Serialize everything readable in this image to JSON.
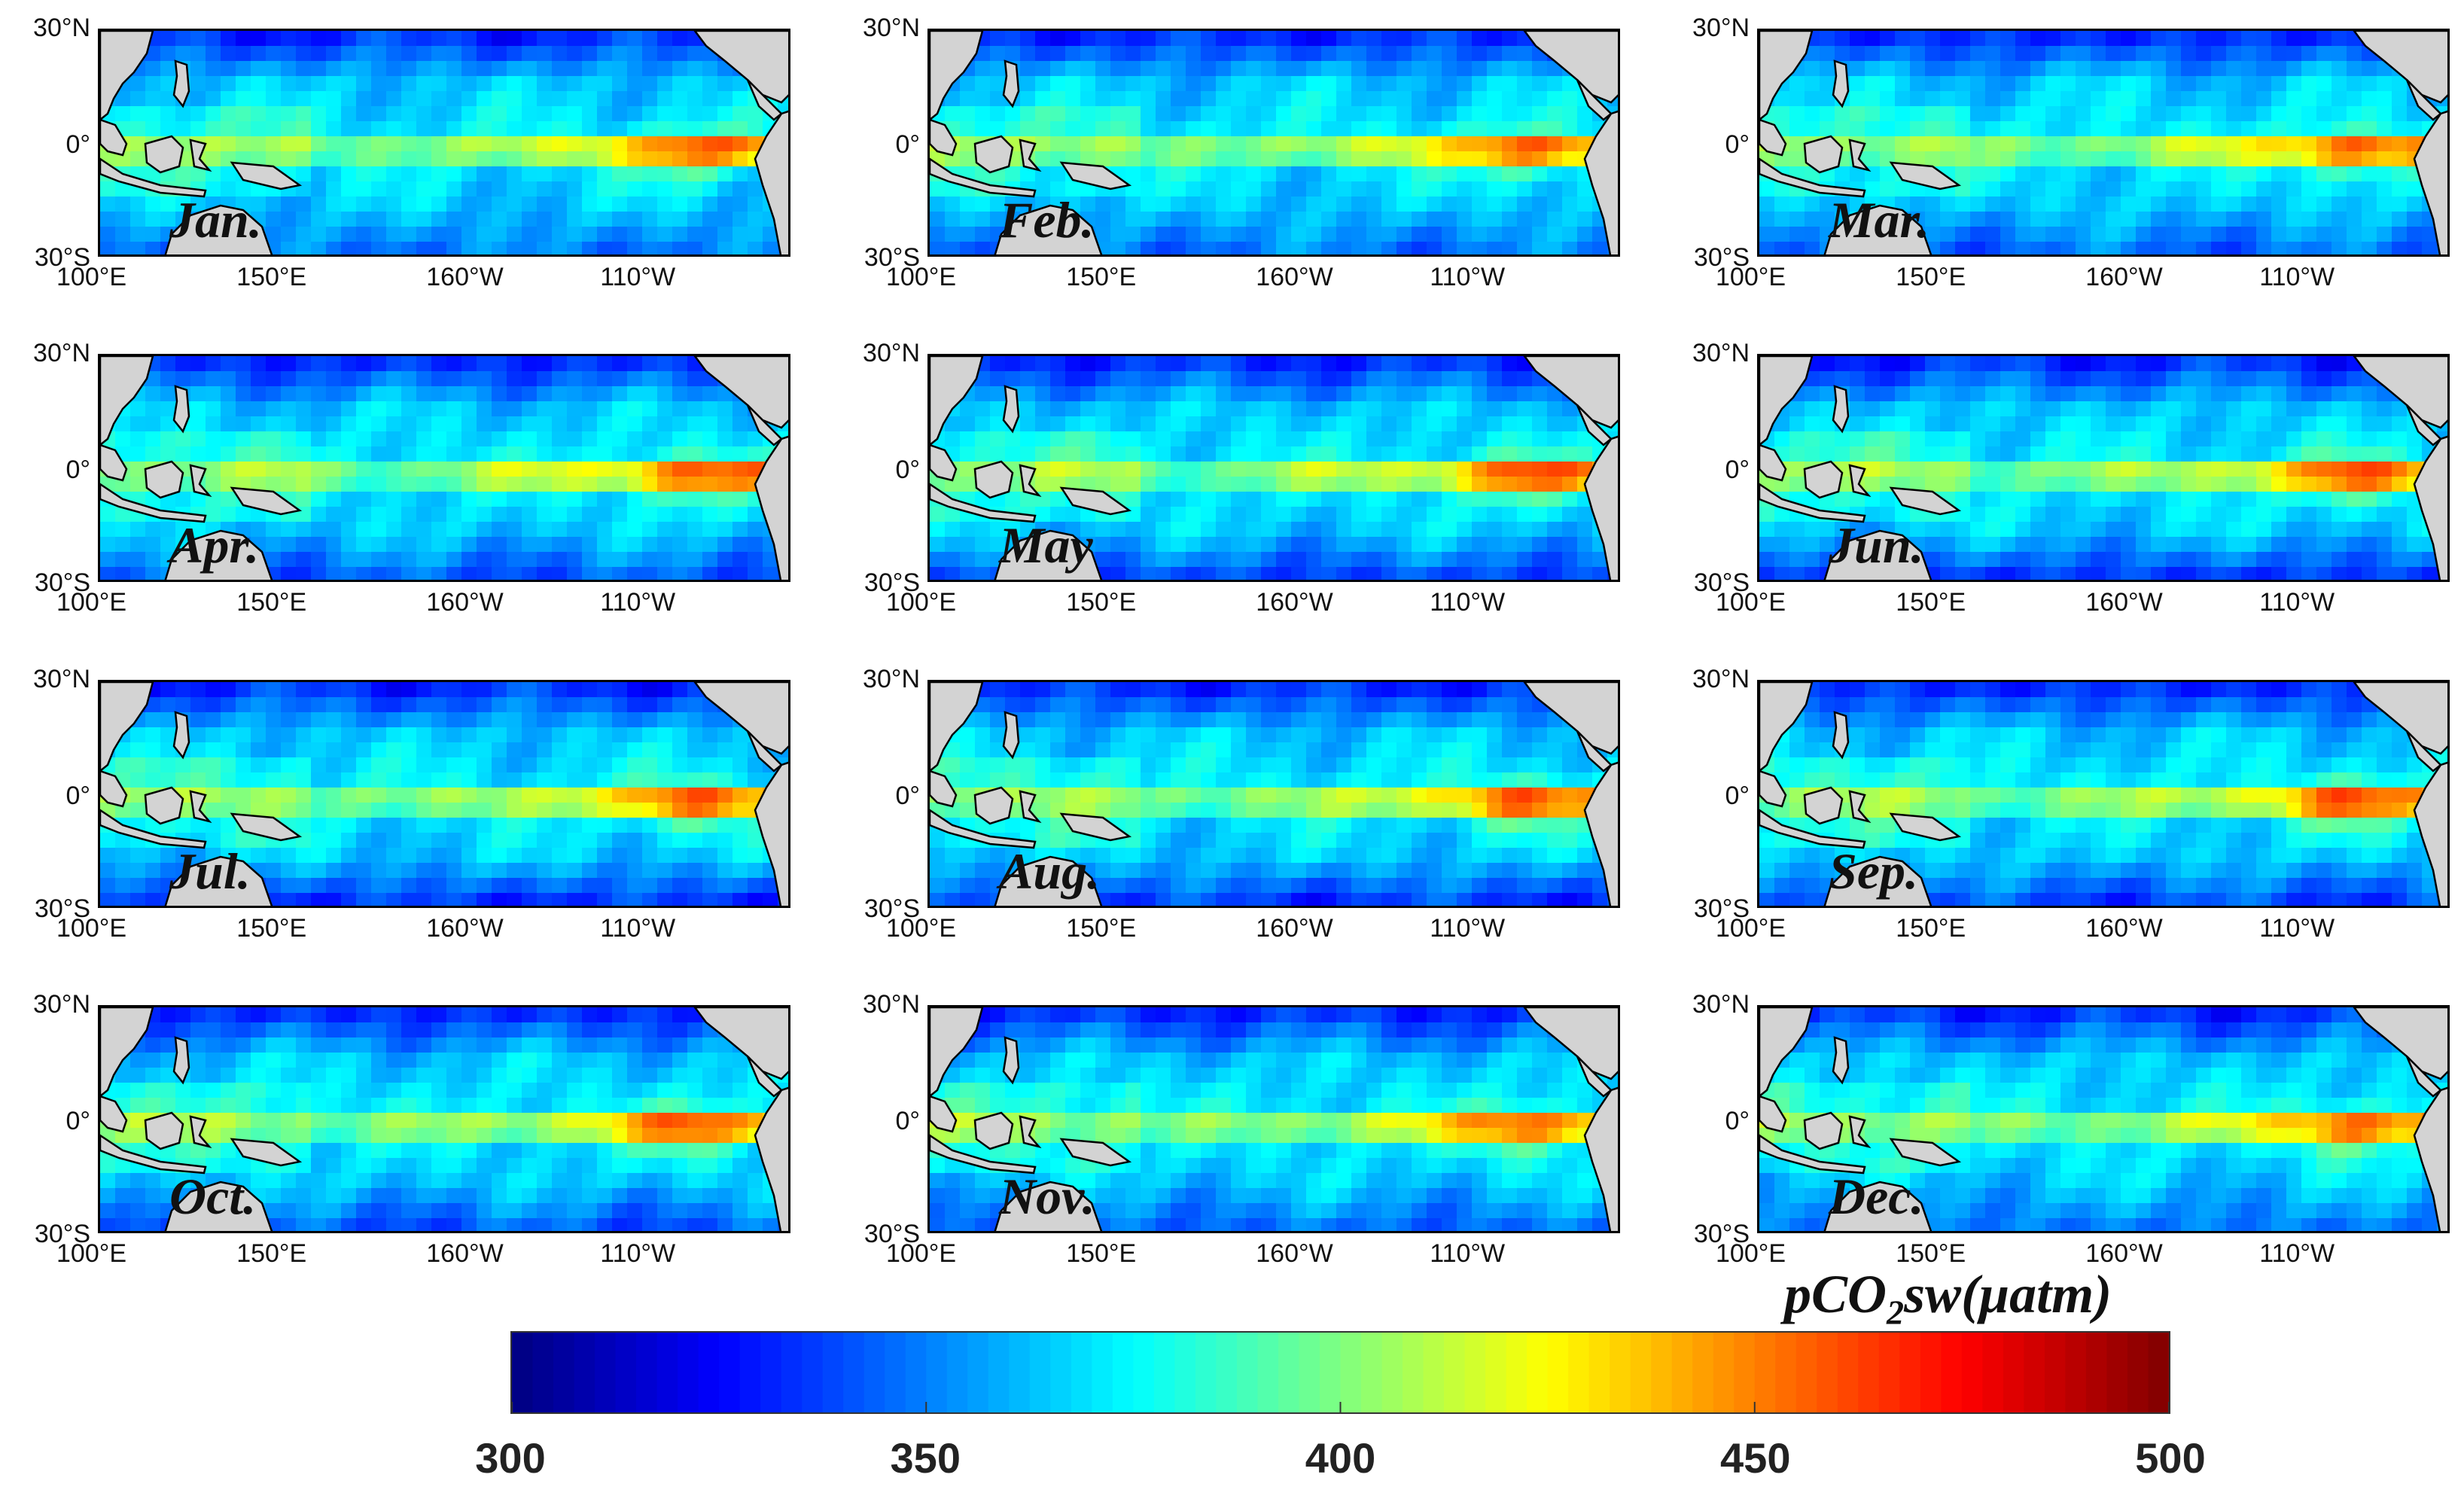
{
  "lat_labels": [
    "30°N",
    "0°",
    "30°S"
  ],
  "lon_labels": [
    "100°E",
    "150°E",
    "160°W",
    "110°W"
  ],
  "panels": [
    {
      "month": "Jan."
    },
    {
      "month": "Feb."
    },
    {
      "month": "Mar."
    },
    {
      "month": "Apr."
    },
    {
      "month": "May"
    },
    {
      "month": "Jun."
    },
    {
      "month": "Jul."
    },
    {
      "month": "Aug."
    },
    {
      "month": "Sep."
    },
    {
      "month": "Oct."
    },
    {
      "month": "Nov."
    },
    {
      "month": "Dec."
    }
  ],
  "colorbar": {
    "title_prefix": "pCO",
    "title_sub": "2",
    "title_suffix": "sw(μatm)",
    "min": 300,
    "max": 500,
    "ticks": [
      "300",
      "350",
      "400",
      "450",
      "500"
    ],
    "colormap": "jet"
  },
  "colors": {
    "land": "#d3d3d3",
    "coast": "#000000"
  }
}
